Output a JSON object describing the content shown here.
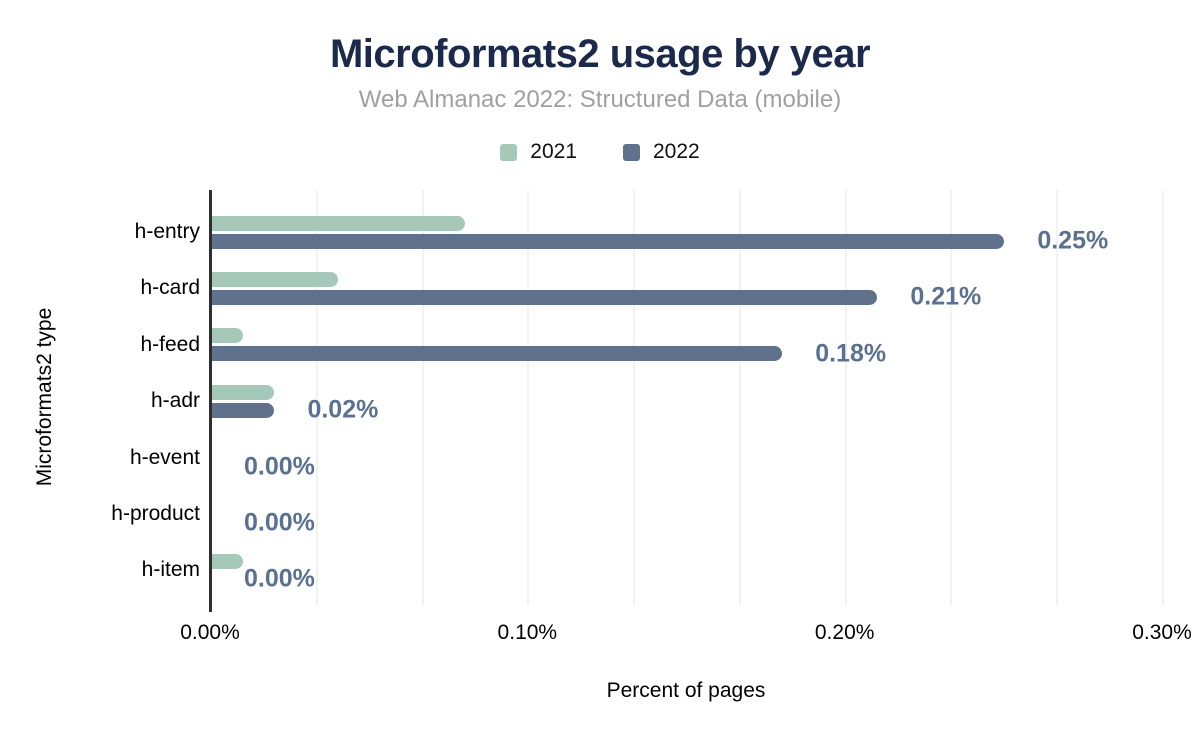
{
  "title": "Microformats2 usage by year",
  "subtitle": "Web Almanac 2022: Structured Data (mobile)",
  "legend": [
    {
      "label": "2021",
      "color": "#a6c8b8"
    },
    {
      "label": "2022",
      "color": "#60718c"
    }
  ],
  "chart_data": {
    "type": "bar",
    "orientation": "horizontal",
    "title": "Microformats2 usage by year",
    "subtitle": "Web Almanac 2022: Structured Data (mobile)",
    "xlabel": "Percent of pages",
    "ylabel": "Microformats2 type",
    "categories": [
      "h-entry",
      "h-card",
      "h-feed",
      "h-adr",
      "h-event",
      "h-product",
      "h-item"
    ],
    "series": [
      {
        "name": "2021",
        "color": "#a6c8b8",
        "values": [
          0.08,
          0.04,
          0.01,
          0.02,
          0.0,
          0.0,
          0.01
        ]
      },
      {
        "name": "2022",
        "color": "#60718c",
        "values": [
          0.25,
          0.21,
          0.18,
          0.02,
          0.0,
          0.0,
          0.0
        ]
      }
    ],
    "data_labels": {
      "series": "2022",
      "color": "#5b7191",
      "values": [
        "0.25%",
        "0.21%",
        "0.18%",
        "0.02%",
        "0.00%",
        "0.00%",
        "0.00%"
      ]
    },
    "x_ticks": [
      {
        "value": 0.0,
        "label": "0.00%"
      },
      {
        "value": 0.1,
        "label": "0.10%"
      },
      {
        "value": 0.2,
        "label": "0.20%"
      },
      {
        "value": 0.3,
        "label": "0.30%"
      }
    ],
    "xlim": [
      0,
      0.3
    ],
    "grid": {
      "vertical": true,
      "minor_divisions_per_tick": 3,
      "color": "#f2f2f3"
    },
    "legend_position": "top",
    "value_unit": "percent"
  },
  "colors": {
    "title": "#1b2a4a",
    "subtitle": "#a0a0a0",
    "axis_line": "#2f2f33",
    "background": "#ffffff"
  }
}
